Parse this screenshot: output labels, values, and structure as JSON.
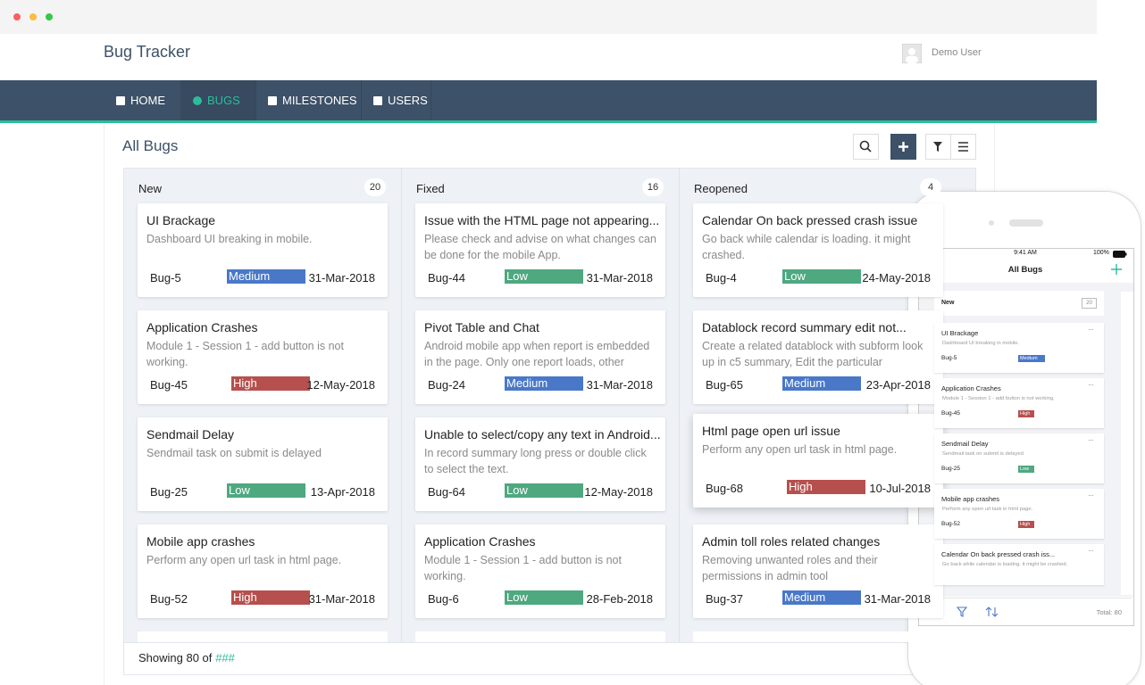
{
  "app": {
    "title": "Bug Tracker",
    "user": "Demo User"
  },
  "nav": [
    "HOME",
    "BUGS",
    "MILESTONES",
    "USERS"
  ],
  "page": {
    "title": "All Bugs",
    "columns": [
      {
        "name": "New",
        "count": 20,
        "cards": [
          {
            "title": "UI Brackage",
            "desc": "Dashboard UI breaking in mobile.",
            "id": "Bug-5",
            "priority": "Medium",
            "date": "31-Mar-2018"
          },
          {
            "title": "Application Crashes",
            "desc": "Module 1 - Session 1 - add button is not working.",
            "id": "Bug-45",
            "priority": "High",
            "date": "12-May-2018"
          },
          {
            "title": "Sendmail Delay",
            "desc": "Sendmail task on submit is delayed",
            "id": "Bug-25",
            "priority": "Low",
            "date": "13-Apr-2018"
          },
          {
            "title": "Mobile app crashes",
            "desc": "Perform any open url task in html page.",
            "id": "Bug-52",
            "priority": "High",
            "date": "31-Mar-2018"
          }
        ]
      },
      {
        "name": "Fixed",
        "count": 16,
        "cards": [
          {
            "title": "Issue with the HTML page not appearing...",
            "desc": "Please check and advise on what changes can be done for the mobile App.",
            "id": "Bug-44",
            "priority": "Low",
            "date": "31-Mar-2018"
          },
          {
            "title": "Pivot Table and Chat",
            "desc": "Android mobile app when report is embedded in the page. Only one report loads, other",
            "id": "Bug-24",
            "priority": "Medium",
            "date": "31-Mar-2018"
          },
          {
            "title": "Unable to select/copy any text in Android...",
            "desc": "In record summary long press or double click to select the text.",
            "id": "Bug-64",
            "priority": "Low",
            "date": "12-May-2018"
          },
          {
            "title": "Application Crashes",
            "desc": "Module 1 - Session 1 - add button is not working.",
            "id": "Bug-6",
            "priority": "Low",
            "date": "28-Feb-2018"
          }
        ]
      },
      {
        "name": "Reopened",
        "count": 4,
        "cards": [
          {
            "title": "Calendar On back pressed crash issue",
            "desc": "Go back while calendar is loading. it might crashed.",
            "id": "Bug-4",
            "priority": "Low",
            "date": "24-May-2018"
          },
          {
            "title": "Datablock record summary edit not...",
            "desc": "Create a related datablock with subform look up in c5 summary, Edit the particular",
            "id": "Bug-65",
            "priority": "Medium",
            "date": "23-Apr-2018"
          },
          {
            "title": "Html page open url issue",
            "desc": "Perform any open url task in html page.",
            "id": "Bug-68",
            "priority": "High",
            "date": "10-Jul-2018"
          },
          {
            "title": "Admin toll roles related changes",
            "desc": "Removing unwanted roles and their permissions in admin tool",
            "id": "Bug-37",
            "priority": "Medium",
            "date": "31-Mar-2018"
          }
        ]
      }
    ],
    "footer": {
      "text": "Showing 80 of",
      "total": "###"
    }
  },
  "phone": {
    "time": "9:41 AM",
    "battery": "100%",
    "title": "All Bugs",
    "column": "New",
    "count": 20,
    "cards": [
      {
        "title": "UI Brackage",
        "desc": "Dashboard UI breaking in mobile.",
        "id": "Bug-5",
        "priority": "Medium"
      },
      {
        "title": "Application Crashes",
        "desc": "Module 1 - Session 1 - add button is not working.",
        "id": "Bug-45",
        "priority": "High"
      },
      {
        "title": "Sendmail Delay",
        "desc": "Sendmail task on submit is delayed",
        "id": "Bug-25",
        "priority": "Low"
      },
      {
        "title": "Mobile app crashes",
        "desc": "Perform any open url task in html page.",
        "id": "Bug-52",
        "priority": "High"
      },
      {
        "title": "Calendar On back pressed crash iss...",
        "desc": "Go back while calendar is loading. it might be crashed.",
        "id": null,
        "priority": null
      }
    ],
    "total": "Total: 80"
  }
}
